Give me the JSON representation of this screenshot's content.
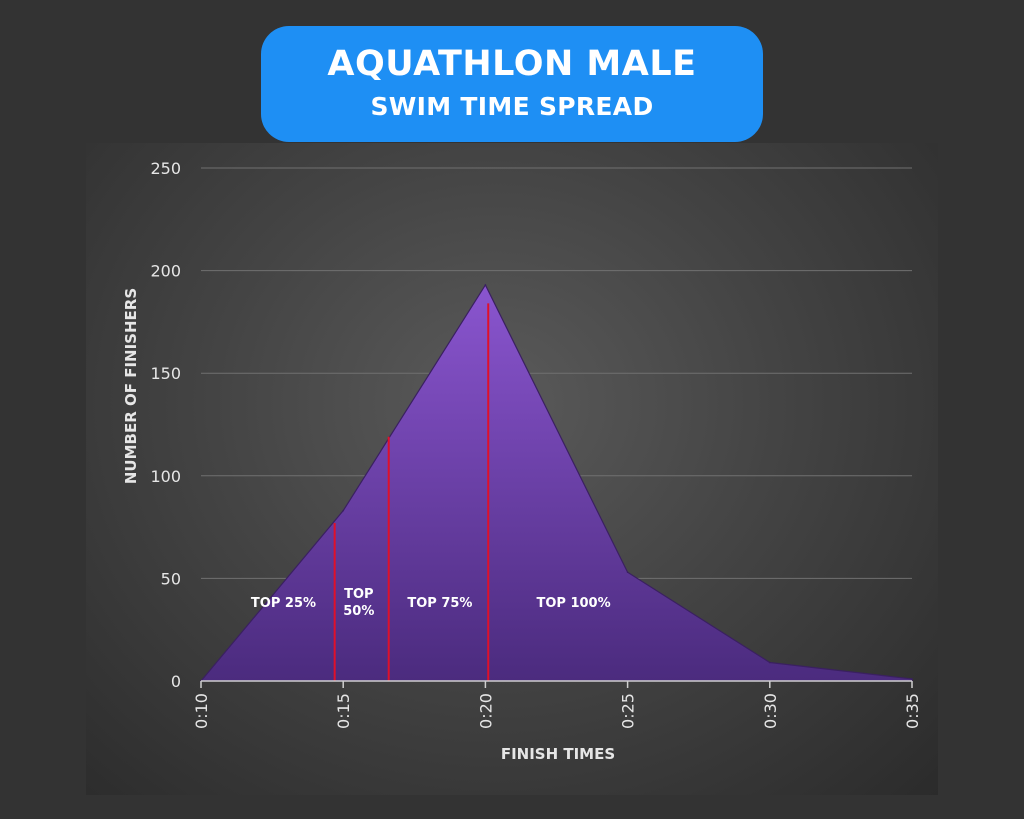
{
  "title": {
    "line1": "AQUATHLON MALE",
    "line2": "SWIM TIME SPREAD"
  },
  "colors": {
    "title_bg": "#1e8ff4",
    "area_fill_top": "#8a55cf",
    "area_fill_bottom": "#4b2b7e",
    "marker_line": "#e0102a",
    "grid": "#707070",
    "text": "#e6e6e6"
  },
  "chart_data": {
    "type": "area",
    "title": "AQUATHLON MALE SWIM TIME SPREAD",
    "xlabel": "FINISH TIMES",
    "ylabel": "NUMBER OF FINISHERS",
    "x": [
      "0:10",
      "0:15",
      "0:20",
      "0:25",
      "0:30",
      "0:35"
    ],
    "x_minutes": [
      10,
      15,
      20,
      25,
      30,
      35
    ],
    "series": [
      {
        "points": [
          [
            10,
            0
          ],
          [
            15,
            83
          ],
          [
            20,
            193
          ],
          [
            25,
            53
          ],
          [
            30,
            9
          ],
          [
            35,
            1
          ]
        ]
      }
    ],
    "xlim": [
      10,
      35
    ],
    "ylim": [
      0,
      250
    ],
    "yticks": [
      0,
      50,
      100,
      150,
      200,
      250
    ],
    "grid": true,
    "legend": "none",
    "markers": [
      {
        "x": 14.7,
        "y": 77
      },
      {
        "x": 16.6,
        "y": 119
      },
      {
        "x": 20.1,
        "y": 184
      }
    ],
    "annotations": [
      {
        "text": "TOP 25%",
        "x_minutes": 12.9,
        "y": 36
      },
      {
        "text": "TOP 50%",
        "lines": [
          "TOP",
          "50%"
        ],
        "x_minutes": 15.55,
        "y": 36
      },
      {
        "text": "TOP 75%",
        "x_minutes": 18.4,
        "y": 36
      },
      {
        "text": "TOP 100%",
        "x_minutes": 23.1,
        "y": 36
      }
    ]
  }
}
